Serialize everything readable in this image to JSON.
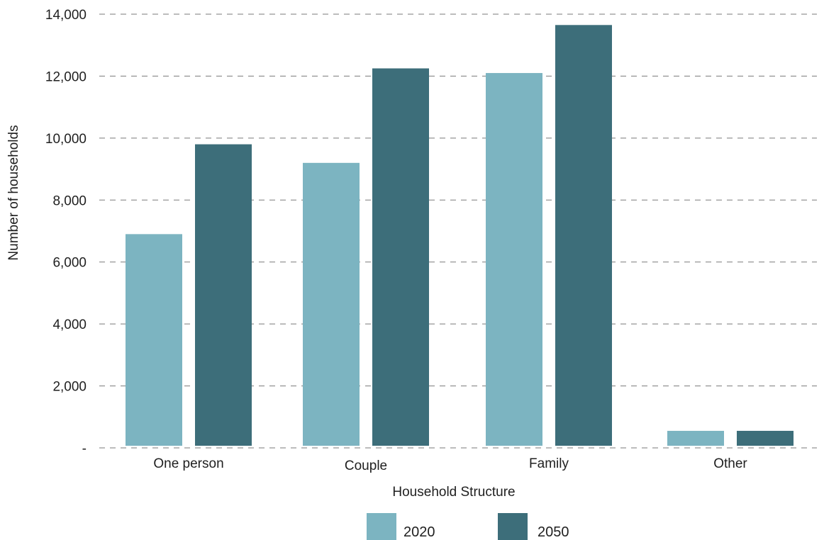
{
  "chart_data": {
    "type": "bar",
    "title": "",
    "xlabel": "Household Structure",
    "ylabel": "Number of households",
    "categories": [
      "One person",
      "Couple",
      "Family",
      "Other"
    ],
    "series": [
      {
        "name": "2020",
        "values": [
          6900,
          9200,
          12100,
          550
        ],
        "color": "#7cb4c1"
      },
      {
        "name": "2050",
        "values": [
          9800,
          12250,
          13650,
          550
        ],
        "color": "#3d6e7a"
      }
    ],
    "ylim": [
      0,
      14000
    ],
    "yticks": [
      0,
      2000,
      4000,
      6000,
      8000,
      10000,
      12000,
      14000
    ],
    "ytick_labels": [
      "-",
      "2,000",
      "4,000",
      "6,000",
      "8,000",
      "10,000",
      "12,000",
      "14,000"
    ],
    "grid": true,
    "grid_style": "dashed",
    "legend_position": "bottom-center"
  }
}
